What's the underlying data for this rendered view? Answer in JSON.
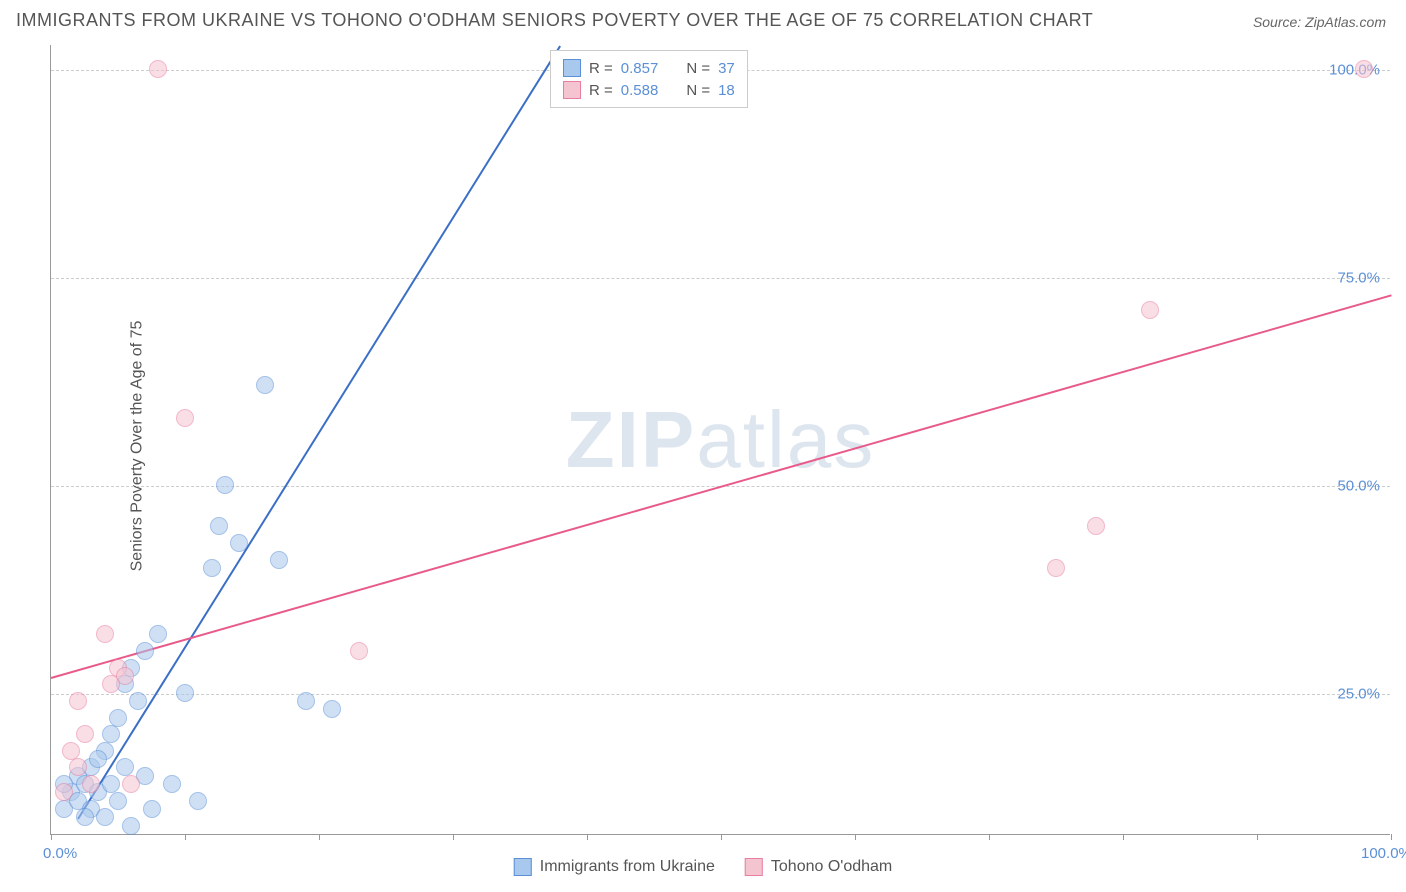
{
  "title": "IMMIGRANTS FROM UKRAINE VS TOHONO O'ODHAM SENIORS POVERTY OVER THE AGE OF 75 CORRELATION CHART",
  "source": "Source: ZipAtlas.com",
  "ylabel": "Seniors Poverty Over the Age of 75",
  "watermark_prefix": "ZIP",
  "watermark_suffix": "atlas",
  "chart": {
    "type": "scatter",
    "xlim": [
      0,
      100
    ],
    "ylim": [
      8,
      103
    ],
    "yticks": [
      25,
      50,
      75,
      100
    ],
    "ytick_labels": [
      "25.0%",
      "50.0%",
      "75.0%",
      "100.0%"
    ],
    "xticks": [
      0,
      10,
      20,
      30,
      40,
      50,
      60,
      70,
      80,
      90,
      100
    ],
    "xtick_labels": {
      "0": "0.0%",
      "100": "100.0%"
    },
    "background_color": "#ffffff",
    "grid_color": "#cccccc",
    "axis_color": "#999999",
    "tick_label_color": "#5b8fd6",
    "marker_radius": 9,
    "marker_opacity": 0.55
  },
  "series": [
    {
      "name": "Immigrants from Ukraine",
      "color_fill": "#a8c8ed",
      "color_stroke": "#5b8fd6",
      "R_label": "R =",
      "R": "0.857",
      "N_label": "N =",
      "N": "37",
      "trend": {
        "x1": 2,
        "y1": 10,
        "x2": 38,
        "y2": 103,
        "color": "#3b6fc6"
      },
      "points": [
        {
          "x": 1,
          "y": 11
        },
        {
          "x": 1.5,
          "y": 13
        },
        {
          "x": 2,
          "y": 12
        },
        {
          "x": 2,
          "y": 15
        },
        {
          "x": 2.5,
          "y": 14
        },
        {
          "x": 3,
          "y": 11
        },
        {
          "x": 3,
          "y": 16
        },
        {
          "x": 3.5,
          "y": 13
        },
        {
          "x": 4,
          "y": 10
        },
        {
          "x": 4,
          "y": 18
        },
        {
          "x": 4.5,
          "y": 14
        },
        {
          "x": 5,
          "y": 22
        },
        {
          "x": 5,
          "y": 12
        },
        {
          "x": 5.5,
          "y": 26
        },
        {
          "x": 6,
          "y": 9
        },
        {
          "x": 6,
          "y": 28
        },
        {
          "x": 6.5,
          "y": 24
        },
        {
          "x": 7,
          "y": 15
        },
        {
          "x": 7,
          "y": 30
        },
        {
          "x": 7.5,
          "y": 11
        },
        {
          "x": 8,
          "y": 32
        },
        {
          "x": 9,
          "y": 14
        },
        {
          "x": 10,
          "y": 25
        },
        {
          "x": 11,
          "y": 12
        },
        {
          "x": 12,
          "y": 40
        },
        {
          "x": 12.5,
          "y": 45
        },
        {
          "x": 13,
          "y": 50
        },
        {
          "x": 14,
          "y": 43
        },
        {
          "x": 16,
          "y": 62
        },
        {
          "x": 17,
          "y": 41
        },
        {
          "x": 19,
          "y": 24
        },
        {
          "x": 21,
          "y": 23
        },
        {
          "x": 2.5,
          "y": 10
        },
        {
          "x": 3.5,
          "y": 17
        },
        {
          "x": 4.5,
          "y": 20
        },
        {
          "x": 5.5,
          "y": 16
        },
        {
          "x": 1,
          "y": 14
        }
      ]
    },
    {
      "name": "Tohono O'odham",
      "color_fill": "#f5c4d1",
      "color_stroke": "#e87ea0",
      "R_label": "R =",
      "R": "0.588",
      "N_label": "N =",
      "N": "18",
      "trend": {
        "x1": 0,
        "y1": 27,
        "x2": 100,
        "y2": 73,
        "color": "#e85a8a"
      },
      "points": [
        {
          "x": 1,
          "y": 13
        },
        {
          "x": 1.5,
          "y": 18
        },
        {
          "x": 2,
          "y": 16
        },
        {
          "x": 2,
          "y": 24
        },
        {
          "x": 2.5,
          "y": 20
        },
        {
          "x": 4,
          "y": 32
        },
        {
          "x": 5,
          "y": 28
        },
        {
          "x": 5.5,
          "y": 27
        },
        {
          "x": 6,
          "y": 14
        },
        {
          "x": 8,
          "y": 100
        },
        {
          "x": 10,
          "y": 58
        },
        {
          "x": 23,
          "y": 30
        },
        {
          "x": 75,
          "y": 40
        },
        {
          "x": 78,
          "y": 45
        },
        {
          "x": 82,
          "y": 71
        },
        {
          "x": 98,
          "y": 100
        },
        {
          "x": 3,
          "y": 14
        },
        {
          "x": 4.5,
          "y": 26
        }
      ]
    }
  ],
  "legend_text_color": "#555555",
  "legend_value_color": "#5b8fd6"
}
